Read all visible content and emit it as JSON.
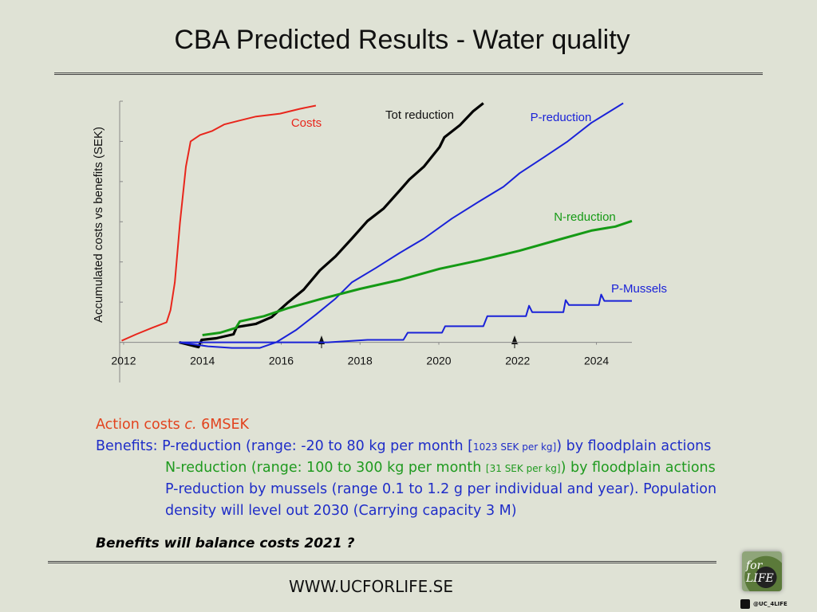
{
  "chart_data": {
    "type": "line",
    "title": "CBA Predicted Results - Water quality",
    "ylabel": "Accumulated costs vs benefits (SEK)",
    "xlim": [
      2011.9,
      2024.9
    ],
    "xticks": [
      2012,
      2014,
      2016,
      2018,
      2020,
      2022,
      2024
    ],
    "ylim": [
      -1,
      6
    ],
    "yticks": [
      0,
      1,
      2,
      3,
      4,
      5,
      6
    ],
    "series": [
      {
        "name": "Costs",
        "color": "#e8261c",
        "x": [
          2011.95,
          2012.32,
          2012.72,
          2013.09,
          2013.19,
          2013.3,
          2013.43,
          2013.58,
          2013.7,
          2013.94,
          2014.25,
          2014.55,
          2014.95,
          2015.36,
          2015.97,
          2016.47,
          2016.88
        ],
        "values": [
          0.04,
          0.2,
          0.36,
          0.5,
          0.8,
          1.49,
          2.98,
          4.37,
          5.0,
          5.16,
          5.26,
          5.42,
          5.52,
          5.62,
          5.69,
          5.81,
          5.89
        ]
      },
      {
        "name": "Tot reduction",
        "color": "#000000",
        "x": [
          2013.41,
          2013.9,
          2013.98,
          2014.35,
          2014.79,
          2014.87,
          2015.36,
          2015.76,
          2016.17,
          2016.57,
          2016.98,
          2017.38,
          2017.79,
          2018.19,
          2018.6,
          2019.0,
          2019.25,
          2019.62,
          2020.02,
          2020.14,
          2020.53,
          2020.87,
          2021.13
        ],
        "values": [
          0,
          -0.12,
          0.06,
          0.1,
          0.2,
          0.38,
          0.46,
          0.63,
          0.99,
          1.31,
          1.79,
          2.14,
          2.58,
          3.02,
          3.33,
          3.77,
          4.05,
          4.37,
          4.86,
          5.1,
          5.4,
          5.75,
          5.95
        ]
      },
      {
        "name": "P-reduction",
        "color": "#1a22d8",
        "x": [
          2013.41,
          2014.14,
          2014.75,
          2015.46,
          2015.87,
          2016.37,
          2016.88,
          2017.38,
          2017.79,
          2018.4,
          2019.0,
          2019.62,
          2020.33,
          2021.03,
          2021.64,
          2022.05,
          2022.66,
          2023.27,
          2023.87,
          2024.68
        ],
        "values": [
          0,
          -0.1,
          -0.14,
          -0.14,
          0,
          0.3,
          0.69,
          1.09,
          1.49,
          1.85,
          2.22,
          2.58,
          3.08,
          3.51,
          3.87,
          4.21,
          4.6,
          5.0,
          5.46,
          5.95
        ]
      },
      {
        "name": "N-reduction",
        "color": "#159a15",
        "x": [
          2014.0,
          2014.45,
          2014.85,
          2014.95,
          2015.56,
          2016.17,
          2016.98,
          2018.0,
          2019.0,
          2020.02,
          2021.03,
          2022.05,
          2023.06,
          2023.87,
          2024.48,
          2024.9
        ],
        "values": [
          0.18,
          0.24,
          0.36,
          0.52,
          0.65,
          0.85,
          1.07,
          1.33,
          1.55,
          1.83,
          2.04,
          2.28,
          2.56,
          2.78,
          2.88,
          3.02
        ]
      },
      {
        "name": "P-Mussels",
        "color": "#1a22d8",
        "x": [
          2013.41,
          2017.18,
          2018.19,
          2019.1,
          2019.21,
          2020.08,
          2020.16,
          2021.13,
          2021.23,
          2022.21,
          2022.29,
          2022.37,
          2023.16,
          2023.22,
          2023.3,
          2024.06,
          2024.12,
          2024.2,
          2024.9
        ],
        "values": [
          0,
          0,
          0.06,
          0.06,
          0.24,
          0.24,
          0.4,
          0.4,
          0.65,
          0.65,
          0.91,
          0.75,
          0.75,
          1.05,
          0.93,
          0.93,
          1.19,
          1.03,
          1.03
        ]
      }
    ]
  },
  "notes": {
    "action": [
      "Action costs ",
      "c.",
      " 6MSEK"
    ],
    "benefits": [
      "Benefits: P-reduction (range: -20 to 80 kg per month [",
      "1023 SEK per kg]",
      ") by floodplain actions"
    ],
    "n_line": [
      "N-reduction (range: 100 to 300 kg per month ",
      "[31 SEK per kg]",
      ") by floodplain actions"
    ],
    "mussels": [
      "P-reduction by mussels (range 0.1 to 1.2 g per individual and year). Population",
      "density will level out 2030 (Carrying capacity 3 M)"
    ],
    "conclusion": "Benefits will balance costs 2021 ?"
  },
  "footer": {
    "url": "WWW.UCFORLIFE.SE",
    "handle": "@UC_4LIFE",
    "logo": "for LIFE"
  }
}
